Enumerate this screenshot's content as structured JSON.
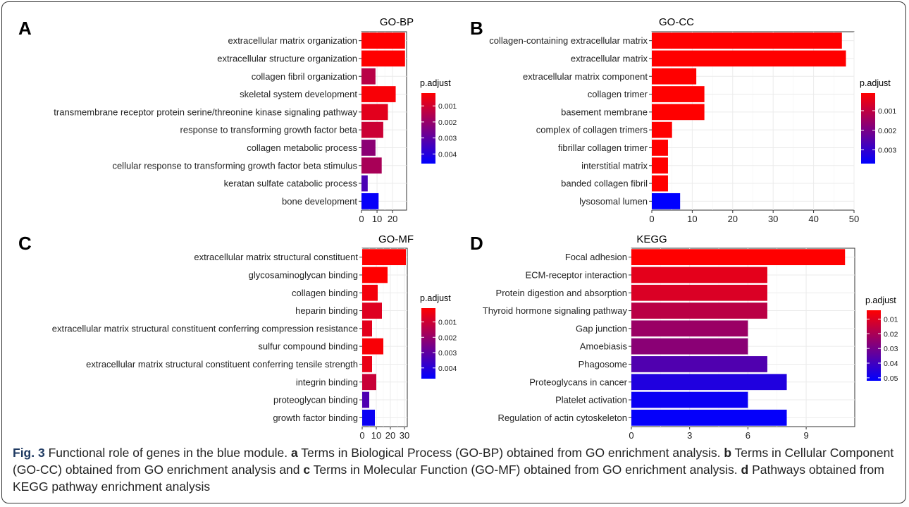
{
  "chart_data": [
    {
      "type": "bar",
      "panel_letter": "A",
      "title": "GO-BP",
      "orientation": "horizontal",
      "categories": [
        "extracellular matrix organization",
        "extracellular structure organization",
        "collagen fibril organization",
        "skeletal system development",
        "transmembrane receptor protein serine/threonine kinase signaling pathway",
        "response to transforming growth factor beta",
        "collagen metabolic process",
        "cellular response to transforming growth factor beta stimulus",
        "keratan sulfate catabolic process",
        "bone development"
      ],
      "values": [
        28,
        28,
        9,
        22,
        17,
        14,
        9,
        13,
        4,
        11
      ],
      "p_adjust": [
        0.0002,
        0.0002,
        0.0014,
        0.0003,
        0.0007,
        0.0011,
        0.0022,
        0.0017,
        0.0033,
        0.0045
      ],
      "xticks": [
        0,
        10,
        20
      ],
      "xlim": [
        0,
        29
      ],
      "legend": {
        "title": "p.adjust",
        "ticks": [
          "0.001",
          "0.002",
          "0.003",
          "0.004"
        ],
        "tick_values": [
          0.001,
          0.002,
          0.003,
          0.004
        ],
        "range": [
          0.0002,
          0.0046
        ],
        "position": "right"
      },
      "grid": true
    },
    {
      "type": "bar",
      "panel_letter": "B",
      "title": "GO-CC",
      "orientation": "horizontal",
      "categories": [
        "collagen-containing extracellular matrix",
        "extracellular matrix",
        "extracellular matrix component",
        "collagen trimer",
        "basement membrane",
        "complex of collagen trimers",
        "fibrillar collagen trimer",
        "interstitial matrix",
        "banded collagen fibril",
        "lysosomal lumen"
      ],
      "values": [
        47,
        48,
        11,
        13,
        13,
        5,
        4,
        4,
        4,
        7
      ],
      "p_adjust": [
        0.0001,
        0.0001,
        0.0001,
        0.0001,
        0.0001,
        0.0001,
        0.0001,
        0.0001,
        0.0001,
        0.0037
      ],
      "xticks": [
        0,
        10,
        20,
        30,
        40,
        50
      ],
      "xlim": [
        0,
        50
      ],
      "legend": {
        "title": "p.adjust",
        "ticks": [
          "0.001",
          "0.002",
          "0.003"
        ],
        "tick_values": [
          0.001,
          0.002,
          0.003
        ],
        "range": [
          0.0001,
          0.0037
        ],
        "position": "right"
      },
      "grid": true
    },
    {
      "type": "bar",
      "panel_letter": "C",
      "title": "GO-MF",
      "orientation": "horizontal",
      "categories": [
        "extracellular matrix structural constituent",
        "glycosaminoglycan binding",
        "collagen binding",
        "heparin binding",
        "extracellular matrix structural constituent conferring compression resistance",
        "sulfur compound binding",
        "extracellular matrix structural constituent conferring tensile strength",
        "integrin binding",
        "proteoglycan binding",
        "growth factor binding"
      ],
      "values": [
        31,
        18,
        11,
        14,
        7,
        15,
        7,
        10,
        5,
        9
      ],
      "p_adjust": [
        0.0001,
        0.0001,
        0.0003,
        0.0007,
        0.0006,
        0.0002,
        0.0005,
        0.0011,
        0.0033,
        0.0045
      ],
      "xticks": [
        0,
        10,
        20,
        30
      ],
      "xlim": [
        0,
        32
      ],
      "legend": {
        "title": "p.adjust",
        "ticks": [
          "0.001",
          "0.002",
          "0.003",
          "0.004"
        ],
        "tick_values": [
          0.001,
          0.002,
          0.003,
          0.004
        ],
        "range": [
          0.0001,
          0.0047
        ],
        "position": "right"
      },
      "grid": true
    },
    {
      "type": "bar",
      "panel_letter": "D",
      "title": "KEGG",
      "orientation": "horizontal",
      "categories": [
        "Focal adhesion",
        "ECM-receptor interaction",
        "Protein digestion and absorption",
        "Thyroid hormone signaling pathway",
        "Gap junction",
        "Amoebiasis",
        "Phagosome",
        "Proteoglycans in cancer",
        "Platelet activation",
        "Regulation of actin cytoskeleton"
      ],
      "values": [
        11,
        7,
        7,
        7,
        6,
        6,
        7,
        8,
        6,
        8
      ],
      "p_adjust": [
        0.004,
        0.009,
        0.011,
        0.017,
        0.023,
        0.026,
        0.037,
        0.046,
        0.05,
        0.051
      ],
      "xticks": [
        0,
        3,
        6,
        9
      ],
      "xlim": [
        0,
        11.5
      ],
      "legend": {
        "title": "p.adjust",
        "ticks": [
          "0.01",
          "0.02",
          "0.03",
          "0.04",
          "0.05"
        ],
        "tick_values": [
          0.01,
          0.02,
          0.03,
          0.04,
          0.05
        ],
        "range": [
          0.004,
          0.052
        ],
        "position": "right"
      },
      "grid": true
    }
  ],
  "colors": {
    "low_p": "#ff0000",
    "high_p": "#0000ff",
    "panel_bg": "#ffffff",
    "grid": "#ebebeb",
    "caption_label": "#1f3a62"
  },
  "caption": {
    "label": "Fig. 3",
    "segments": [
      {
        "text": " Functional role of genes in the blue module. ",
        "bold": false
      },
      {
        "text": "a",
        "bold": true
      },
      {
        "text": " Terms in Biological Process (GO-BP) obtained from GO enrichment analysis. ",
        "bold": false
      },
      {
        "text": "b",
        "bold": true
      },
      {
        "text": " Terms in Cellular Component (GO-CC) obtained from GO enrichment analysis and ",
        "bold": false
      },
      {
        "text": "c",
        "bold": true
      },
      {
        "text": " Terms in Molecular Function (GO-MF) obtained from GO enrichment analysis. ",
        "bold": false
      },
      {
        "text": "d",
        "bold": true
      },
      {
        "text": " Pathways obtained from KEGG pathway enrichment analysis",
        "bold": false
      }
    ]
  }
}
